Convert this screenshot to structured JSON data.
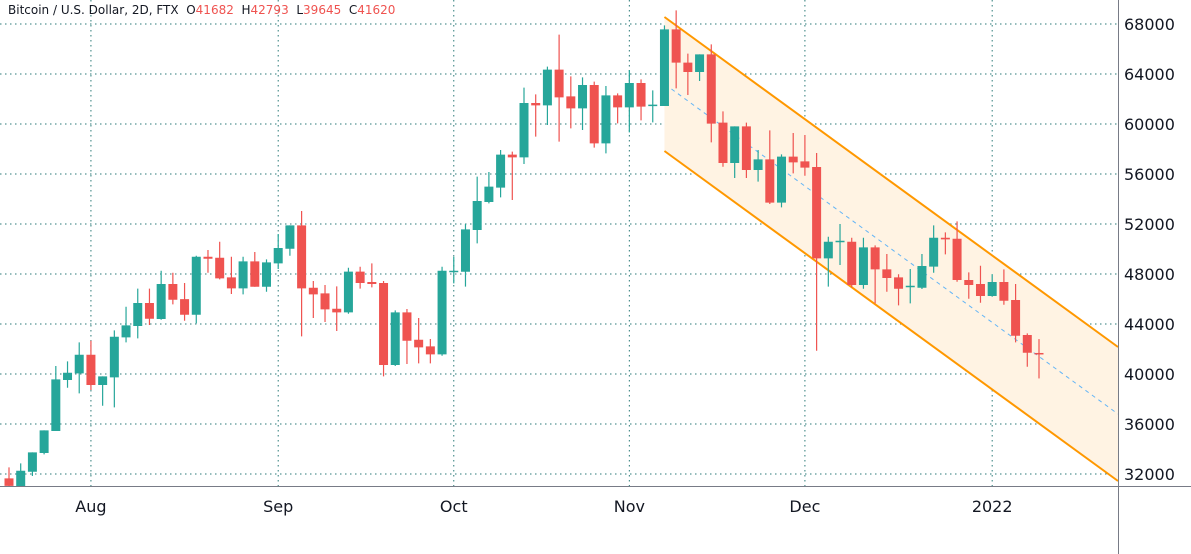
{
  "header": {
    "symbol": "Bitcoin / U.S. Dollar, 2D, FTX",
    "open_label": "O",
    "open": "41682",
    "high_label": "H",
    "high": "42793",
    "low_label": "L",
    "low": "39645",
    "close_label": "C",
    "close": "41620"
  },
  "chart_data": {
    "type": "candlestick",
    "title": "Bitcoin / U.S. Dollar, 2D, FTX",
    "ylim": [
      30900,
      69920
    ],
    "y_ticks": [
      68000,
      64000,
      60000,
      56000,
      52000,
      48000,
      44000,
      40000,
      36000,
      32000
    ],
    "x_ticks": [
      {
        "label": "Aug",
        "bar": 7
      },
      {
        "label": "Sep",
        "bar": 23
      },
      {
        "label": "Oct",
        "bar": 38
      },
      {
        "label": "Nov",
        "bar": 53
      },
      {
        "label": "Dec",
        "bar": 68
      },
      {
        "label": "2022",
        "bar": 84
      }
    ],
    "grid": true,
    "colors": {
      "up": "#26a69a",
      "down": "#ef5350",
      "grid": "#2b7a78",
      "channel": "#ff9800",
      "channel_fill": "#fff3e3",
      "midline": "#64b5f6"
    },
    "candles_ohlc": [
      [
        31650,
        32530,
        31000,
        31050
      ],
      [
        31000,
        32850,
        30900,
        32260
      ],
      [
        32180,
        33730,
        31840,
        33730
      ],
      [
        33680,
        35490,
        33570,
        35490
      ],
      [
        35440,
        40640,
        35440,
        39570
      ],
      [
        39520,
        41010,
        38900,
        40100
      ],
      [
        40050,
        42530,
        38450,
        41540
      ],
      [
        41540,
        42660,
        38720,
        39120
      ],
      [
        39120,
        39810,
        37460,
        39810
      ],
      [
        39730,
        43490,
        37330,
        42980
      ],
      [
        42930,
        45380,
        42530,
        43890
      ],
      [
        43840,
        46830,
        42850,
        45680
      ],
      [
        45680,
        46830,
        43920,
        44420
      ],
      [
        44400,
        48260,
        44340,
        47200
      ],
      [
        47200,
        48100,
        45570,
        45940
      ],
      [
        45990,
        47280,
        44260,
        44740
      ],
      [
        44740,
        49460,
        44050,
        49380
      ],
      [
        49380,
        49920,
        48100,
        49220
      ],
      [
        49300,
        50580,
        47570,
        47650
      ],
      [
        47730,
        49380,
        46400,
        46850
      ],
      [
        46850,
        49380,
        46370,
        49010
      ],
      [
        49010,
        49760,
        46980,
        46980
      ],
      [
        46980,
        49170,
        46580,
        48930
      ],
      [
        48850,
        51200,
        48400,
        50080
      ],
      [
        50020,
        51890,
        49460,
        51890
      ],
      [
        51890,
        53040,
        43010,
        46850
      ],
      [
        46900,
        47440,
        44480,
        46370
      ],
      [
        46450,
        47120,
        44160,
        45170
      ],
      [
        45220,
        47010,
        43440,
        44930
      ],
      [
        44930,
        48500,
        44820,
        48190
      ],
      [
        48190,
        48580,
        46830,
        47280
      ],
      [
        47360,
        48850,
        46930,
        47200
      ],
      [
        47280,
        47440,
        39810,
        40720
      ],
      [
        40720,
        45090,
        40640,
        44930
      ],
      [
        44930,
        45200,
        40800,
        42660
      ],
      [
        42740,
        44480,
        40850,
        42130
      ],
      [
        42210,
        42800,
        40850,
        41570
      ],
      [
        41570,
        48580,
        41460,
        48260
      ],
      [
        48180,
        49380,
        47250,
        48260
      ],
      [
        48180,
        52000,
        46990,
        51570
      ],
      [
        51520,
        55790,
        50450,
        53840
      ],
      [
        53760,
        56160,
        53650,
        54990
      ],
      [
        54910,
        57920,
        54130,
        57550
      ],
      [
        57550,
        57790,
        53920,
        57330
      ],
      [
        57330,
        62910,
        56800,
        61680
      ],
      [
        61680,
        62370,
        58990,
        61490
      ],
      [
        61490,
        64590,
        59920,
        64350
      ],
      [
        64350,
        67150,
        58590,
        62130
      ],
      [
        62210,
        63810,
        59650,
        61250
      ],
      [
        61250,
        63730,
        59520,
        63120
      ],
      [
        63120,
        63390,
        58110,
        58450
      ],
      [
        58450,
        63040,
        57650,
        62290
      ],
      [
        62290,
        62450,
        60050,
        61330
      ],
      [
        61330,
        64320,
        59330,
        63280
      ],
      [
        63280,
        63570,
        60290,
        61390
      ],
      [
        61440,
        62690,
        60130,
        61550
      ],
      [
        61440,
        67890,
        61440,
        67570
      ],
      [
        67570,
        69090,
        62850,
        64910
      ],
      [
        64910,
        65630,
        62320,
        64160
      ],
      [
        64160,
        65570,
        63440,
        65570
      ],
      [
        65570,
        66370,
        58530,
        60030
      ],
      [
        60110,
        61010,
        56580,
        56880
      ],
      [
        56880,
        59810,
        55680,
        59810
      ],
      [
        59810,
        60110,
        55680,
        56320
      ],
      [
        56320,
        57920,
        55390,
        57170
      ],
      [
        57170,
        59490,
        53600,
        53710
      ],
      [
        53710,
        57570,
        53330,
        57390
      ],
      [
        57390,
        59280,
        56050,
        56930
      ],
      [
        57010,
        59120,
        55860,
        56510
      ],
      [
        56560,
        57680,
        41860,
        49250
      ],
      [
        49250,
        50980,
        46990,
        50580
      ],
      [
        50580,
        52000,
        48720,
        50660
      ],
      [
        50580,
        50900,
        46930,
        47120
      ],
      [
        47120,
        50900,
        46820,
        50130
      ],
      [
        50130,
        50290,
        45650,
        48370
      ],
      [
        48370,
        49600,
        46580,
        47680
      ],
      [
        47730,
        47980,
        45490,
        46820
      ],
      [
        46980,
        48400,
        45650,
        47060
      ],
      [
        46900,
        49600,
        46800,
        48640
      ],
      [
        48590,
        51890,
        48100,
        50900
      ],
      [
        50900,
        51330,
        49570,
        50770
      ],
      [
        50820,
        52210,
        47380,
        47520
      ],
      [
        47520,
        48130,
        46020,
        47120
      ],
      [
        47200,
        48660,
        45700,
        46240
      ],
      [
        46240,
        47990,
        46180,
        47360
      ],
      [
        47360,
        48370,
        45540,
        45860
      ],
      [
        45920,
        47200,
        42530,
        43060
      ],
      [
        43120,
        43250,
        40580,
        41700
      ],
      [
        41682,
        42793,
        39645,
        41620
      ]
    ],
    "channel": {
      "upper": [
        {
          "bar": 56,
          "price": 68560
        },
        {
          "bar": 94.75,
          "price": 42160
        }
      ],
      "lower": [
        {
          "bar": 56,
          "price": 57840
        },
        {
          "bar": 94.75,
          "price": 31440
        }
      ],
      "middle": [
        {
          "bar": 56.6,
          "price": 62800
        },
        {
          "bar": 94.75,
          "price": 36800
        }
      ]
    }
  }
}
